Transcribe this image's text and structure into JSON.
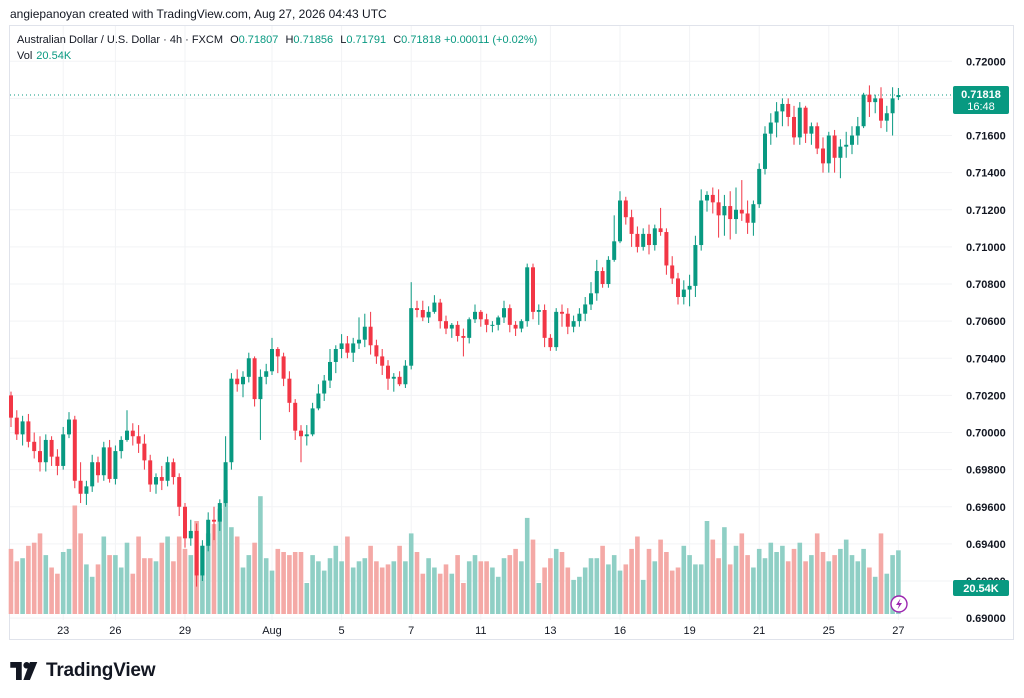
{
  "attribution": "angiepanoyan created with TradingView.com, Aug 27, 2026 04:43 UTC",
  "legend": {
    "symbol": "Australian Dollar / U.S. Dollar · 4h · FXCM",
    "open_label": "O",
    "open": "0.71807",
    "high_label": "H",
    "high": "0.71856",
    "low_label": "L",
    "low": "0.71791",
    "close_label": "C",
    "close": "0.71818",
    "change": "+0.00011 (+0.02%)",
    "vol_label": "Vol",
    "vol": "20.54K"
  },
  "price_badge": {
    "price": "0.71818",
    "countdown": "16:48"
  },
  "volume_badge": "20.54K",
  "brand": "TradingView",
  "colors": {
    "up": "#089981",
    "down": "#f23645",
    "up_volume": "#8fcfc5",
    "down_volume": "#f4a9a6",
    "grid": "#f2f3f5",
    "price_line": "#089981"
  },
  "icons": [
    "tradingview-logo-icon",
    "lightning-icon"
  ],
  "chart_data": {
    "type": "candlestick",
    "symbol": "AUDUSD",
    "timeframe": "4h",
    "ylim": [
      0.6899,
      0.7219
    ],
    "y_ticks": [
      "0.69000",
      "0.69200",
      "0.69400",
      "0.69600",
      "0.69800",
      "0.70000",
      "0.70200",
      "0.70400",
      "0.70600",
      "0.70800",
      "0.71000",
      "0.71200",
      "0.71400",
      "0.71600",
      "0.71800",
      "0.72000"
    ],
    "x_ticks": [
      {
        "label": "23",
        "index": 9
      },
      {
        "label": "26",
        "index": 18
      },
      {
        "label": "29",
        "index": 30
      },
      {
        "label": "Aug",
        "index": 45
      },
      {
        "label": "5",
        "index": 57
      },
      {
        "label": "7",
        "index": 69
      },
      {
        "label": "11",
        "index": 81
      },
      {
        "label": "13",
        "index": 93
      },
      {
        "label": "16",
        "index": 105
      },
      {
        "label": "19",
        "index": 117
      },
      {
        "label": "21",
        "index": 129
      },
      {
        "label": "25",
        "index": 141
      },
      {
        "label": "27",
        "index": 153
      }
    ],
    "last_close": 0.71818,
    "candles": [
      [
        0.702,
        0.7022,
        0.7003,
        0.7008,
        21
      ],
      [
        0.7008,
        0.7012,
        0.6996,
        0.6999,
        17
      ],
      [
        0.6999,
        0.7009,
        0.6993,
        0.7006,
        18
      ],
      [
        0.7006,
        0.701,
        0.6992,
        0.6995,
        22
      ],
      [
        0.6995,
        0.7,
        0.6986,
        0.699,
        23
      ],
      [
        0.699,
        0.6998,
        0.6979,
        0.6984,
        26
      ],
      [
        0.6984,
        0.6999,
        0.6979,
        0.6996,
        19
      ],
      [
        0.6996,
        0.6998,
        0.6982,
        0.6987,
        15
      ],
      [
        0.6987,
        0.6991,
        0.6977,
        0.6982,
        13
      ],
      [
        0.6982,
        0.7003,
        0.698,
        0.6999,
        20
      ],
      [
        0.6999,
        0.7011,
        0.6997,
        0.7007,
        21
      ],
      [
        0.7007,
        0.7009,
        0.697,
        0.6974,
        35
      ],
      [
        0.6974,
        0.6984,
        0.6962,
        0.6967,
        26
      ],
      [
        0.6967,
        0.6974,
        0.6961,
        0.6971,
        16
      ],
      [
        0.6971,
        0.6988,
        0.6968,
        0.6984,
        12
      ],
      [
        0.6984,
        0.6987,
        0.6973,
        0.6977,
        16
      ],
      [
        0.6977,
        0.6995,
        0.6974,
        0.6992,
        25
      ],
      [
        0.6992,
        0.6996,
        0.6973,
        0.6975,
        19
      ],
      [
        0.6975,
        0.6993,
        0.6972,
        0.699,
        19
      ],
      [
        0.699,
        0.6998,
        0.6986,
        0.6996,
        15
      ],
      [
        0.6996,
        0.7012,
        0.6995,
        0.7001,
        23
      ],
      [
        0.7001,
        0.7005,
        0.6993,
        0.6998,
        13
      ],
      [
        0.6998,
        0.7004,
        0.6989,
        0.6994,
        25
      ],
      [
        0.6994,
        0.6999,
        0.698,
        0.6985,
        18
      ],
      [
        0.6985,
        0.6988,
        0.6968,
        0.6972,
        18
      ],
      [
        0.6972,
        0.6978,
        0.6967,
        0.6976,
        17
      ],
      [
        0.6976,
        0.6982,
        0.6969,
        0.6974,
        23
      ],
      [
        0.6974,
        0.6987,
        0.6971,
        0.6984,
        25
      ],
      [
        0.6984,
        0.6986,
        0.6972,
        0.6976,
        17
      ],
      [
        0.6976,
        0.6978,
        0.6955,
        0.696,
        25
      ],
      [
        0.696,
        0.6962,
        0.6938,
        0.6943,
        21
      ],
      [
        0.6943,
        0.6953,
        0.6939,
        0.6947,
        19
      ],
      [
        0.6947,
        0.6951,
        0.6917,
        0.6923,
        30
      ],
      [
        0.6923,
        0.6942,
        0.692,
        0.6939,
        22
      ],
      [
        0.6939,
        0.6957,
        0.6936,
        0.6953,
        26
      ],
      [
        0.6953,
        0.696,
        0.6942,
        0.6952,
        29
      ],
      [
        0.6952,
        0.6964,
        0.6947,
        0.6962,
        34
      ],
      [
        0.6962,
        0.6998,
        0.696,
        0.6984,
        40
      ],
      [
        0.6984,
        0.7032,
        0.698,
        0.7029,
        28
      ],
      [
        0.7029,
        0.7034,
        0.7022,
        0.7026,
        25
      ],
      [
        0.7026,
        0.7033,
        0.7019,
        0.703,
        15
      ],
      [
        0.703,
        0.7043,
        0.7027,
        0.704,
        19
      ],
      [
        0.704,
        0.7041,
        0.7014,
        0.7018,
        23
      ],
      [
        0.7018,
        0.7034,
        0.6996,
        0.703,
        38
      ],
      [
        0.703,
        0.7037,
        0.7026,
        0.7033,
        18
      ],
      [
        0.7033,
        0.7051,
        0.7031,
        0.7045,
        14
      ],
      [
        0.7045,
        0.7046,
        0.7032,
        0.7041,
        21
      ],
      [
        0.7041,
        0.7043,
        0.7025,
        0.7029,
        20
      ],
      [
        0.7029,
        0.7033,
        0.7011,
        0.7016,
        19
      ],
      [
        0.7016,
        0.7018,
        0.6996,
        0.7001,
        20
      ],
      [
        0.7001,
        0.7004,
        0.6984,
        0.6998,
        20
      ],
      [
        0.6998,
        0.7004,
        0.6993,
        0.6999,
        10
      ],
      [
        0.6999,
        0.7016,
        0.6998,
        0.7013,
        19
      ],
      [
        0.7013,
        0.7026,
        0.7012,
        0.7021,
        17
      ],
      [
        0.7021,
        0.7031,
        0.7017,
        0.7028,
        14
      ],
      [
        0.7028,
        0.7045,
        0.7024,
        0.7038,
        18
      ],
      [
        0.7038,
        0.7047,
        0.7032,
        0.7045,
        22
      ],
      [
        0.7045,
        0.7053,
        0.704,
        0.7048,
        17
      ],
      [
        0.7048,
        0.7052,
        0.704,
        0.7043,
        25
      ],
      [
        0.7043,
        0.7051,
        0.7038,
        0.7048,
        15
      ],
      [
        0.7048,
        0.7062,
        0.7045,
        0.705,
        17
      ],
      [
        0.705,
        0.7064,
        0.7046,
        0.7057,
        18
      ],
      [
        0.7057,
        0.7065,
        0.7042,
        0.7047,
        22
      ],
      [
        0.7047,
        0.705,
        0.7037,
        0.7041,
        17
      ],
      [
        0.7041,
        0.7045,
        0.7031,
        0.7036,
        15
      ],
      [
        0.7036,
        0.7039,
        0.7023,
        0.7029,
        16
      ],
      [
        0.7029,
        0.7032,
        0.7022,
        0.703,
        17
      ],
      [
        0.703,
        0.7033,
        0.7025,
        0.7026,
        22
      ],
      [
        0.7026,
        0.7039,
        0.7024,
        0.7036,
        17
      ],
      [
        0.7036,
        0.7081,
        0.7034,
        0.7067,
        26
      ],
      [
        0.7067,
        0.7071,
        0.7062,
        0.7066,
        20
      ],
      [
        0.7066,
        0.7071,
        0.706,
        0.7062,
        13
      ],
      [
        0.7062,
        0.7068,
        0.7059,
        0.7065,
        18
      ],
      [
        0.7065,
        0.7074,
        0.7064,
        0.707,
        15
      ],
      [
        0.707,
        0.7072,
        0.7056,
        0.706,
        13
      ],
      [
        0.706,
        0.7063,
        0.7053,
        0.7056,
        16
      ],
      [
        0.7056,
        0.7059,
        0.7051,
        0.7058,
        13
      ],
      [
        0.7058,
        0.706,
        0.7049,
        0.7052,
        19
      ],
      [
        0.7052,
        0.7056,
        0.7041,
        0.7051,
        10
      ],
      [
        0.7051,
        0.7062,
        0.7048,
        0.7061,
        17
      ],
      [
        0.7061,
        0.7069,
        0.7059,
        0.7065,
        19
      ],
      [
        0.7065,
        0.7066,
        0.7057,
        0.7061,
        17
      ],
      [
        0.7061,
        0.7064,
        0.7054,
        0.7058,
        17
      ],
      [
        0.7058,
        0.706,
        0.7054,
        0.7058,
        15
      ],
      [
        0.7058,
        0.7063,
        0.7055,
        0.7062,
        12
      ],
      [
        0.7062,
        0.7071,
        0.7059,
        0.7067,
        18
      ],
      [
        0.7067,
        0.7069,
        0.7054,
        0.7058,
        19
      ],
      [
        0.7058,
        0.706,
        0.7052,
        0.7056,
        21
      ],
      [
        0.7056,
        0.7061,
        0.7054,
        0.706,
        17
      ],
      [
        0.706,
        0.7091,
        0.7057,
        0.7089,
        31
      ],
      [
        0.7089,
        0.7091,
        0.7061,
        0.7065,
        24
      ],
      [
        0.7065,
        0.7069,
        0.7058,
        0.7066,
        10
      ],
      [
        0.7066,
        0.7069,
        0.7046,
        0.7051,
        15
      ],
      [
        0.7051,
        0.7053,
        0.7044,
        0.7046,
        18
      ],
      [
        0.7046,
        0.7067,
        0.7044,
        0.7065,
        21
      ],
      [
        0.7065,
        0.7069,
        0.7057,
        0.7064,
        20
      ],
      [
        0.7064,
        0.7067,
        0.7053,
        0.7057,
        15
      ],
      [
        0.7057,
        0.7063,
        0.7054,
        0.706,
        11
      ],
      [
        0.706,
        0.7067,
        0.7057,
        0.7064,
        12
      ],
      [
        0.7064,
        0.7073,
        0.706,
        0.7069,
        15
      ],
      [
        0.7069,
        0.7081,
        0.7066,
        0.7075,
        18
      ],
      [
        0.7075,
        0.7093,
        0.7071,
        0.7087,
        18
      ],
      [
        0.7087,
        0.7089,
        0.7078,
        0.708,
        22
      ],
      [
        0.708,
        0.7095,
        0.7078,
        0.7093,
        16
      ],
      [
        0.7093,
        0.7117,
        0.7092,
        0.7103,
        19
      ],
      [
        0.7103,
        0.713,
        0.7102,
        0.7125,
        14
      ],
      [
        0.7125,
        0.7127,
        0.7112,
        0.7116,
        16
      ],
      [
        0.7116,
        0.712,
        0.71,
        0.7107,
        21
      ],
      [
        0.7107,
        0.7111,
        0.7097,
        0.71,
        25
      ],
      [
        0.71,
        0.711,
        0.7098,
        0.7107,
        11
      ],
      [
        0.7107,
        0.7112,
        0.7096,
        0.7101,
        21
      ],
      [
        0.7101,
        0.7112,
        0.7098,
        0.711,
        17
      ],
      [
        0.711,
        0.7121,
        0.7106,
        0.7108,
        24
      ],
      [
        0.7108,
        0.711,
        0.7085,
        0.709,
        20
      ],
      [
        0.709,
        0.7095,
        0.708,
        0.7083,
        14
      ],
      [
        0.7083,
        0.7086,
        0.7069,
        0.7073,
        15
      ],
      [
        0.7073,
        0.7082,
        0.7069,
        0.7077,
        22
      ],
      [
        0.7077,
        0.7085,
        0.7068,
        0.7079,
        19
      ],
      [
        0.7079,
        0.7106,
        0.7073,
        0.7101,
        16
      ],
      [
        0.7101,
        0.7131,
        0.7098,
        0.7125,
        16
      ],
      [
        0.7125,
        0.713,
        0.7119,
        0.7128,
        30
      ],
      [
        0.7128,
        0.7132,
        0.7118,
        0.7124,
        24
      ],
      [
        0.7124,
        0.7131,
        0.7105,
        0.7117,
        18
      ],
      [
        0.7117,
        0.7128,
        0.7106,
        0.7122,
        28
      ],
      [
        0.7122,
        0.713,
        0.7104,
        0.7115,
        16
      ],
      [
        0.7115,
        0.7132,
        0.7107,
        0.712,
        22
      ],
      [
        0.712,
        0.7136,
        0.7114,
        0.7118,
        26
      ],
      [
        0.7118,
        0.7125,
        0.7107,
        0.7113,
        19
      ],
      [
        0.7113,
        0.7125,
        0.7106,
        0.7123,
        15
      ],
      [
        0.7123,
        0.7145,
        0.7121,
        0.7142,
        21
      ],
      [
        0.7142,
        0.7165,
        0.7139,
        0.7161,
        18
      ],
      [
        0.7161,
        0.7172,
        0.7155,
        0.7167,
        23
      ],
      [
        0.7167,
        0.7178,
        0.7159,
        0.7173,
        20
      ],
      [
        0.7173,
        0.718,
        0.7165,
        0.7177,
        22
      ],
      [
        0.7177,
        0.718,
        0.7165,
        0.717,
        17
      ],
      [
        0.717,
        0.7176,
        0.7155,
        0.7159,
        21
      ],
      [
        0.7159,
        0.7178,
        0.7155,
        0.7175,
        23
      ],
      [
        0.7175,
        0.7176,
        0.7156,
        0.7161,
        17
      ],
      [
        0.7161,
        0.7167,
        0.7155,
        0.7165,
        19
      ],
      [
        0.7165,
        0.7167,
        0.715,
        0.7153,
        26
      ],
      [
        0.7153,
        0.7159,
        0.714,
        0.7145,
        20
      ],
      [
        0.7145,
        0.7162,
        0.714,
        0.716,
        17
      ],
      [
        0.716,
        0.7163,
        0.714,
        0.7148,
        19
      ],
      [
        0.7148,
        0.7158,
        0.7137,
        0.7154,
        21
      ],
      [
        0.7154,
        0.7162,
        0.7148,
        0.7155,
        24
      ],
      [
        0.7155,
        0.7165,
        0.715,
        0.716,
        19
      ],
      [
        0.716,
        0.717,
        0.7155,
        0.7165,
        17
      ],
      [
        0.7165,
        0.7183,
        0.7164,
        0.7182,
        21
      ],
      [
        0.7182,
        0.7187,
        0.717,
        0.7178,
        15
      ],
      [
        0.7178,
        0.7182,
        0.7172,
        0.718,
        12
      ],
      [
        0.718,
        0.7186,
        0.7164,
        0.7168,
        26
      ],
      [
        0.7168,
        0.7176,
        0.7162,
        0.7172,
        13
      ],
      [
        0.7172,
        0.7186,
        0.716,
        0.718,
        19
      ],
      [
        0.71807,
        0.71856,
        0.71791,
        0.71818,
        20.54
      ]
    ]
  }
}
